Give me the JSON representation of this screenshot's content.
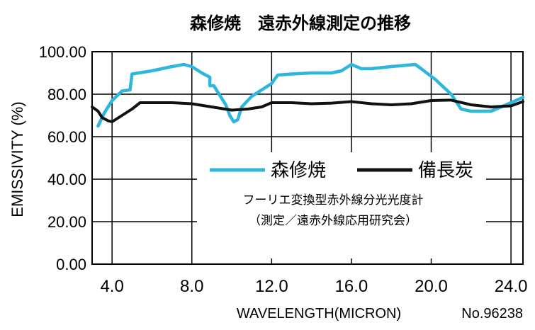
{
  "chart_data": {
    "type": "line",
    "title": "森修焼　遠赤外線測定の推移",
    "xlabel": "WAVELENGTH(MICRON)",
    "ylabel": "EMISSIVITY (%)",
    "xlim": [
      3.0,
      24.6
    ],
    "ylim": [
      0,
      100
    ],
    "x_ticks": [
      4,
      8,
      12,
      16,
      20,
      24
    ],
    "x_tick_labels": [
      "4.0",
      "8.0",
      "12.0",
      "16.0",
      "20.0",
      "24.0"
    ],
    "y_ticks": [
      0,
      20,
      40,
      60,
      80,
      100
    ],
    "y_tick_labels": [
      "0.00",
      "20.00",
      "40.00",
      "60.00",
      "80.00",
      "100.00"
    ],
    "series": [
      {
        "name": "森修焼",
        "color": "#2fb6dc",
        "points": [
          [
            3.3,
            65
          ],
          [
            3.6,
            71
          ],
          [
            4.0,
            77
          ],
          [
            4.5,
            81.5
          ],
          [
            4.9,
            82
          ],
          [
            5.0,
            89.5
          ],
          [
            6.0,
            91
          ],
          [
            7.0,
            93
          ],
          [
            7.6,
            94
          ],
          [
            8.0,
            93
          ],
          [
            8.5,
            90
          ],
          [
            8.9,
            88
          ],
          [
            8.9,
            84
          ],
          [
            9.1,
            84
          ],
          [
            9.5,
            78
          ],
          [
            9.7,
            75
          ],
          [
            9.9,
            70
          ],
          [
            10.1,
            67
          ],
          [
            10.3,
            68
          ],
          [
            10.5,
            74
          ],
          [
            11,
            79
          ],
          [
            12,
            85
          ],
          [
            12.3,
            89
          ],
          [
            13,
            89.5
          ],
          [
            14,
            90
          ],
          [
            15,
            90
          ],
          [
            15.5,
            91
          ],
          [
            16.0,
            94
          ],
          [
            16.5,
            92
          ],
          [
            17,
            92
          ],
          [
            18,
            93
          ],
          [
            19.2,
            94
          ],
          [
            19.5,
            92
          ],
          [
            20.2,
            87
          ],
          [
            21,
            80
          ],
          [
            21.5,
            73
          ],
          [
            22,
            72
          ],
          [
            23,
            72
          ],
          [
            24,
            76
          ],
          [
            24.6,
            78.5
          ]
        ]
      },
      {
        "name": "備長炭",
        "color": "#111111",
        "points": [
          [
            3.0,
            74
          ],
          [
            3.3,
            72
          ],
          [
            3.5,
            69
          ],
          [
            3.8,
            67.5
          ],
          [
            4.0,
            67
          ],
          [
            4.5,
            70
          ],
          [
            5.0,
            73
          ],
          [
            5.4,
            76
          ],
          [
            6,
            76
          ],
          [
            7,
            76
          ],
          [
            8,
            75.5
          ],
          [
            9,
            74
          ],
          [
            10,
            72.5
          ],
          [
            10.8,
            73
          ],
          [
            11.5,
            74
          ],
          [
            12,
            76
          ],
          [
            13,
            76
          ],
          [
            14,
            75.5
          ],
          [
            15,
            75.8
          ],
          [
            16,
            76.5
          ],
          [
            17,
            75.5
          ],
          [
            18,
            75
          ],
          [
            19,
            75.5
          ],
          [
            20,
            77
          ],
          [
            21,
            77.2
          ],
          [
            22,
            75
          ],
          [
            23,
            74
          ],
          [
            24,
            74.5
          ],
          [
            24.6,
            76.5
          ]
        ]
      }
    ],
    "annotations": [
      "フーリエ変換型赤外線分光光度計",
      "（測定／遠赤外線応用研究会）"
    ],
    "figure_number": "No.96238"
  },
  "colors": {
    "background": "#ffffff",
    "axes": "#000000"
  }
}
